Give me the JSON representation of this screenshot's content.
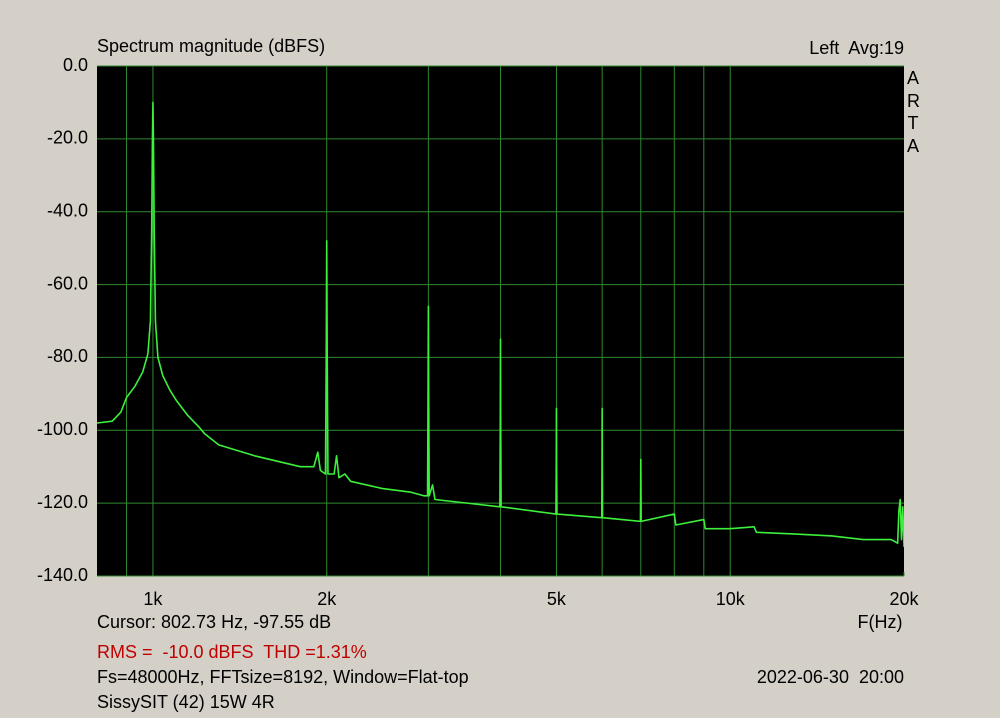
{
  "chart_data": {
    "type": "line",
    "title": "Spectrum magnitude (dBFS)",
    "channel_label": "Left  Avg:19",
    "brand": "ARTA",
    "x_label": "F(Hz)",
    "cursor_text": "Cursor: 802.73 Hz, -97.55 dB",
    "measurement_text": "RMS =  -10.0 dBFS  THD =1.31%",
    "settings_text": "Fs=48000Hz, FFTsize=8192, Window=Flat-top",
    "date_text": "2022-06-30  20:00",
    "device_text": "SissySIT (42) 15W 4R",
    "xscale": "log",
    "xlim": [
      800,
      20000
    ],
    "ylim": [
      -140,
      0
    ],
    "xticks": [
      {
        "value": 1000,
        "label": "1k"
      },
      {
        "value": 2000,
        "label": "2k"
      },
      {
        "value": 5000,
        "label": "5k"
      },
      {
        "value": 10000,
        "label": "10k"
      },
      {
        "value": 20000,
        "label": "20k"
      }
    ],
    "xgrid": [
      900,
      1000,
      2000,
      3000,
      4000,
      5000,
      6000,
      7000,
      8000,
      9000,
      10000
    ],
    "yticks": [
      {
        "value": 0,
        "label": "0.0"
      },
      {
        "value": -20,
        "label": "-20.0"
      },
      {
        "value": -40,
        "label": "-40.0"
      },
      {
        "value": -60,
        "label": "-60.0"
      },
      {
        "value": -80,
        "label": "-80.0"
      },
      {
        "value": -100,
        "label": "-100.0"
      },
      {
        "value": -120,
        "label": "-120.0"
      },
      {
        "value": -140,
        "label": "-140.0"
      }
    ],
    "grid": true,
    "color": "#3cf03c",
    "x": [
      800,
      850,
      880,
      900,
      930,
      960,
      980,
      990,
      995,
      998,
      1000,
      1002,
      1005,
      1010,
      1020,
      1040,
      1070,
      1100,
      1150,
      1200,
      1230,
      1300,
      1500,
      1800,
      1900,
      1930,
      1950,
      1990,
      1996,
      2000,
      2004,
      2010,
      2060,
      2080,
      2100,
      2150,
      2200,
      2500,
      2800,
      2950,
      2990,
      2996,
      3000,
      3004,
      3010,
      3050,
      3080,
      3500,
      3990,
      3996,
      4000,
      4004,
      4010,
      4990,
      4996,
      5000,
      5004,
      5010,
      5990,
      5996,
      6000,
      6004,
      6010,
      6990,
      7000,
      7010,
      8000,
      8050,
      9000,
      9050,
      10000,
      11000,
      11100,
      13000,
      15000,
      17000,
      19000,
      19500,
      19600,
      19700,
      19800,
      19900,
      20000
    ],
    "values": [
      -98,
      -97.5,
      -95,
      -91,
      -88,
      -84,
      -79,
      -70,
      -45,
      -20,
      -10,
      -20,
      -45,
      -70,
      -80,
      -85,
      -89,
      -92,
      -96,
      -99,
      -101,
      -104,
      -107,
      -110,
      -110,
      -106,
      -111,
      -112,
      -80,
      -48,
      -80,
      -112,
      -112,
      -107,
      -113,
      -112,
      -114,
      -116,
      -117,
      -118,
      -118,
      -90,
      -66,
      -90,
      -118,
      -115,
      -119,
      -120,
      -121,
      -100,
      -75,
      -100,
      -121,
      -123,
      -110,
      -94,
      -110,
      -123,
      -124,
      -110,
      -94,
      -110,
      -124,
      -125,
      -108,
      -125,
      -123,
      -126,
      -124.5,
      -127,
      -127,
      -126.5,
      -128,
      -128.5,
      -129,
      -130,
      -130,
      -131,
      -122,
      -119,
      -130,
      -121,
      -132
    ]
  }
}
